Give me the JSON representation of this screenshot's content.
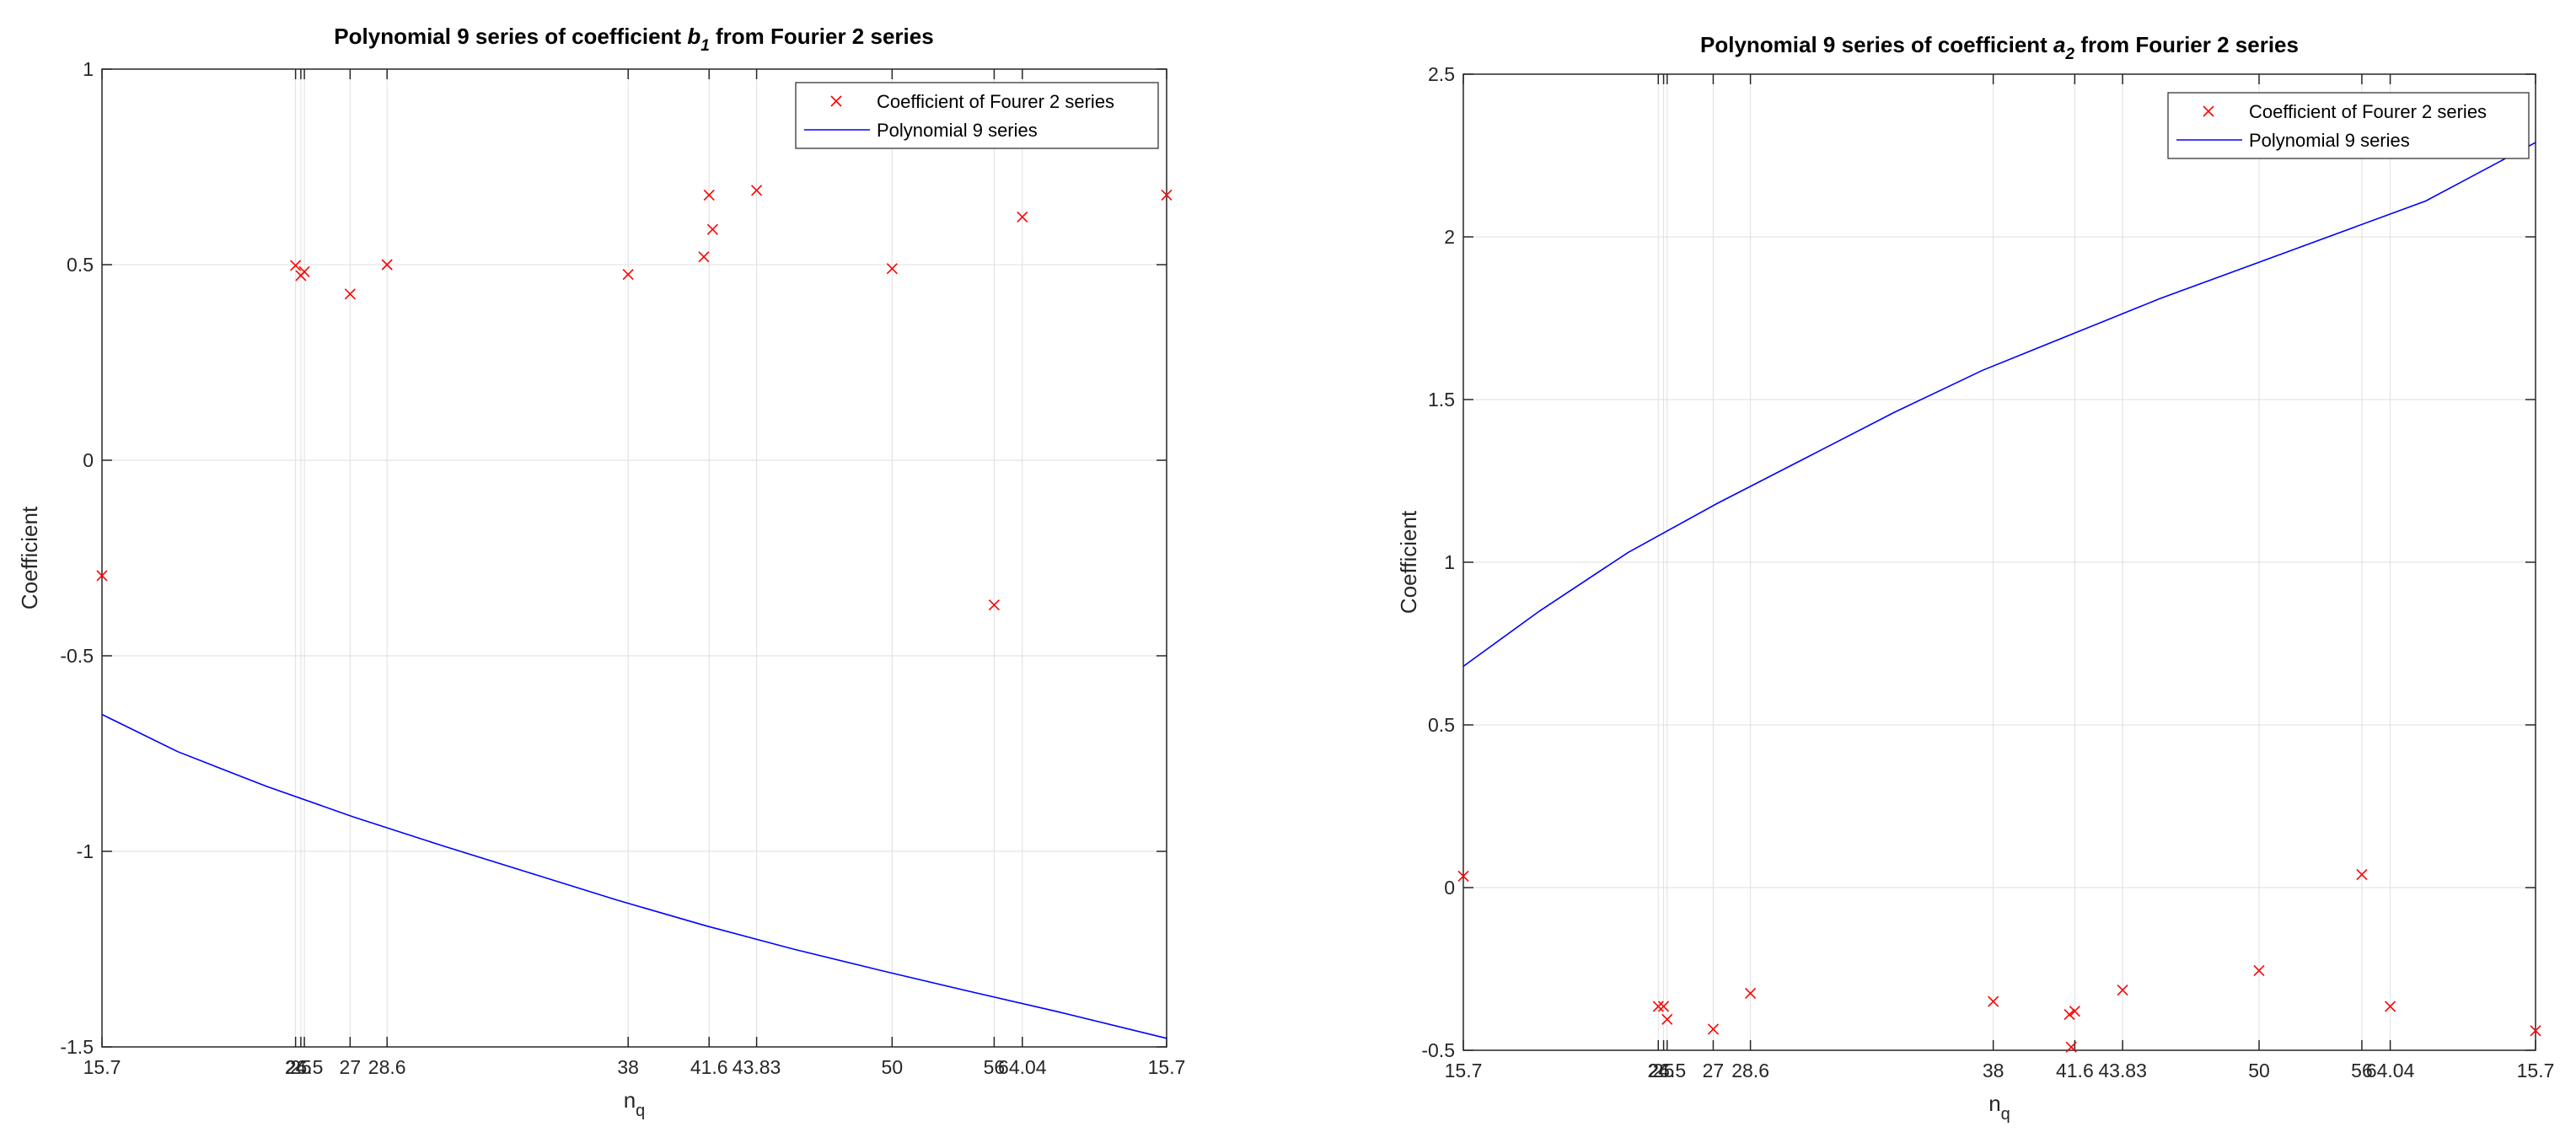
{
  "chart_data": [
    {
      "type": "scatter",
      "title": {
        "prefix": "Polynomial 9 series of coefficient ",
        "sym": "b",
        "sub": "1",
        "suffix": "  from Fourier 2 series"
      },
      "xlabel": {
        "main": "n",
        "sub": "q"
      },
      "ylabel": "Coefficient",
      "xlim": [
        15.7,
        76.2
      ],
      "ylim": [
        -1.5,
        1
      ],
      "yticks": [
        1,
        0.5,
        0,
        -0.5,
        -1,
        -1.5
      ],
      "xticks": [
        {
          "x": 15.7,
          "label": "15.7"
        },
        {
          "x": 26.7,
          "label": "24"
        },
        {
          "x": 27.0,
          "label": "25"
        },
        {
          "x": 27.2,
          "label": "26.5"
        },
        {
          "x": 29.8,
          "label": "27"
        },
        {
          "x": 31.9,
          "label": "28.6"
        },
        {
          "x": 45.6,
          "label": "38"
        },
        {
          "x": 50.2,
          "label": "41.6"
        },
        {
          "x": 52.9,
          "label": "43.83"
        },
        {
          "x": 60.6,
          "label": "50"
        },
        {
          "x": 66.4,
          "label": "56"
        },
        {
          "x": 68.0,
          "label": "64.04"
        },
        {
          "x": 76.2,
          "label": "15.7"
        }
      ],
      "grid": true,
      "legend_position": "top-right",
      "series": [
        {
          "name": "Coefficient of Fourer 2 series",
          "color": "#ff0000",
          "marker": "x",
          "points": [
            [
              15.7,
              -0.295
            ],
            [
              26.7,
              0.498
            ],
            [
              27.0,
              0.472
            ],
            [
              27.2,
              0.482
            ],
            [
              29.8,
              0.425
            ],
            [
              31.9,
              0.5
            ],
            [
              45.6,
              0.475
            ],
            [
              49.9,
              0.52
            ],
            [
              50.2,
              0.678
            ],
            [
              50.4,
              0.59
            ],
            [
              52.9,
              0.69
            ],
            [
              60.6,
              0.49
            ],
            [
              66.4,
              -0.37
            ],
            [
              68.0,
              0.622
            ],
            [
              76.2,
              0.678
            ]
          ]
        },
        {
          "name": "Polynomial 9 series",
          "color": "#0000ff",
          "marker": "line",
          "points": [
            [
              15.7,
              -0.65
            ],
            [
              20.0,
              -0.745
            ],
            [
              25.0,
              -0.833
            ],
            [
              30.0,
              -0.912
            ],
            [
              35.0,
              -0.985
            ],
            [
              40.0,
              -1.055
            ],
            [
              45.0,
              -1.125
            ],
            [
              50.0,
              -1.19
            ],
            [
              55.0,
              -1.25
            ],
            [
              60.0,
              -1.305
            ],
            [
              65.0,
              -1.358
            ],
            [
              70.0,
              -1.41
            ],
            [
              76.2,
              -1.478
            ]
          ]
        }
      ]
    },
    {
      "type": "scatter",
      "title": {
        "prefix": "Polynomial 9 series of coefficient ",
        "sym": "a",
        "sub": "2",
        "suffix": "  from Fourier 2 series"
      },
      "xlabel": {
        "main": "n",
        "sub": "q"
      },
      "ylabel": "Coefficient",
      "xlim": [
        15.7,
        76.2
      ],
      "ylim": [
        -0.5,
        2.5
      ],
      "yticks": [
        2.5,
        2,
        1.5,
        1,
        0.5,
        0,
        -0.5
      ],
      "xticks": [
        {
          "x": 15.7,
          "label": "15.7"
        },
        {
          "x": 26.7,
          "label": "24"
        },
        {
          "x": 27.0,
          "label": "25"
        },
        {
          "x": 27.2,
          "label": "26.5"
        },
        {
          "x": 29.8,
          "label": "27"
        },
        {
          "x": 31.9,
          "label": "28.6"
        },
        {
          "x": 45.6,
          "label": "38"
        },
        {
          "x": 50.2,
          "label": "41.6"
        },
        {
          "x": 52.9,
          "label": "43.83"
        },
        {
          "x": 60.6,
          "label": "50"
        },
        {
          "x": 66.4,
          "label": "56"
        },
        {
          "x": 68.0,
          "label": "64.04"
        },
        {
          "x": 76.2,
          "label": "15.7"
        }
      ],
      "grid": true,
      "legend_position": "top-right",
      "series": [
        {
          "name": "Coefficient of Fourer 2 series",
          "color": "#ff0000",
          "marker": "x",
          "points": [
            [
              15.7,
              0.035
            ],
            [
              26.7,
              -0.365
            ],
            [
              27.0,
              -0.365
            ],
            [
              27.2,
              -0.405
            ],
            [
              29.8,
              -0.435
            ],
            [
              31.9,
              -0.325
            ],
            [
              45.6,
              -0.35
            ],
            [
              49.9,
              -0.39
            ],
            [
              50.0,
              -0.49
            ],
            [
              50.2,
              -0.38
            ],
            [
              52.9,
              -0.315
            ],
            [
              60.6,
              -0.255
            ],
            [
              66.4,
              0.04
            ],
            [
              68.0,
              -0.365
            ],
            [
              76.2,
              -0.44
            ]
          ]
        },
        {
          "name": "Polynomial 9 series",
          "color": "#0000ff",
          "marker": "line",
          "points": [
            [
              15.7,
              0.68
            ],
            [
              20.0,
              0.85
            ],
            [
              25.0,
              1.03
            ],
            [
              30.0,
              1.18
            ],
            [
              35.0,
              1.32
            ],
            [
              40.0,
              1.46
            ],
            [
              45.0,
              1.59
            ],
            [
              50.0,
              1.7
            ],
            [
              55.0,
              1.81
            ],
            [
              60.0,
              1.91
            ],
            [
              65.0,
              2.01
            ],
            [
              70.0,
              2.11
            ],
            [
              76.2,
              2.29
            ]
          ]
        }
      ]
    }
  ]
}
